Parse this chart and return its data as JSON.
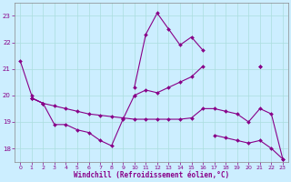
{
  "xlabel": "Windchill (Refroidissement éolien,°C)",
  "background_color": "#cceeff",
  "grid_color": "#aadddd",
  "line_color": "#880088",
  "x": [
    0,
    1,
    2,
    3,
    4,
    5,
    6,
    7,
    8,
    9,
    10,
    11,
    12,
    13,
    14,
    15,
    16,
    17,
    18,
    19,
    20,
    21,
    22,
    23
  ],
  "line1": [
    21.3,
    20.0,
    null,
    null,
    null,
    null,
    null,
    null,
    null,
    null,
    20.3,
    22.3,
    23.1,
    22.5,
    21.9,
    22.2,
    21.7,
    null,
    null,
    null,
    null,
    21.1,
    null,
    null
  ],
  "line2": [
    null,
    19.9,
    19.7,
    18.9,
    18.9,
    18.7,
    18.6,
    18.3,
    18.1,
    19.1,
    20.0,
    null,
    null,
    null,
    null,
    null,
    null,
    null,
    null,
    null,
    null,
    null,
    null,
    null
  ],
  "line3": [
    null,
    19.9,
    19.7,
    null,
    null,
    null,
    null,
    null,
    null,
    null,
    20.0,
    20.2,
    20.1,
    20.3,
    20.5,
    20.7,
    21.1,
    null,
    null,
    null,
    null,
    21.1,
    null,
    null
  ],
  "line4": [
    null,
    19.9,
    19.7,
    19.6,
    19.5,
    19.4,
    19.3,
    19.25,
    19.2,
    19.15,
    19.1,
    19.1,
    19.1,
    19.1,
    19.1,
    19.15,
    19.5,
    19.5,
    19.4,
    19.3,
    19.0,
    19.5,
    19.3,
    17.6
  ],
  "line5": [
    null,
    null,
    null,
    null,
    null,
    null,
    null,
    null,
    null,
    null,
    null,
    null,
    null,
    null,
    null,
    null,
    null,
    18.5,
    18.4,
    18.3,
    18.2,
    18.3,
    18.0,
    17.6
  ],
  "ylim": [
    17.5,
    23.5
  ],
  "yticks": [
    18,
    19,
    20,
    21,
    22,
    23
  ],
  "xticks": [
    0,
    1,
    2,
    3,
    4,
    5,
    6,
    7,
    8,
    9,
    10,
    11,
    12,
    13,
    14,
    15,
    16,
    17,
    18,
    19,
    20,
    21,
    22,
    23
  ]
}
